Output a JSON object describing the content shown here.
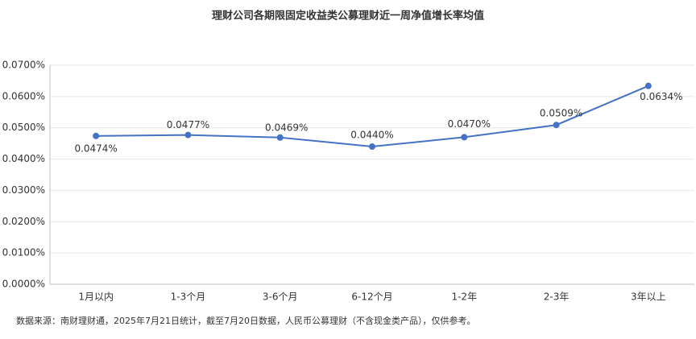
{
  "chart_data": {
    "type": "line",
    "title": "理财公司各期限固定收益类公募理财近一周净值增长率均值",
    "categories": [
      "1月以内",
      "1-3个月",
      "3-6个月",
      "6-12个月",
      "1-2年",
      "2-3年",
      "3年以上"
    ],
    "series": [
      {
        "color": "#4472c4",
        "values": [
          0.0474,
          0.0477,
          0.0469,
          0.044,
          0.047,
          0.0509,
          0.0634
        ],
        "value_labels": [
          "0.0474%",
          "0.0477%",
          "0.0469%",
          "0.0440%",
          "0.0470%",
          "0.0509%",
          "0.0634%"
        ]
      }
    ],
    "ylim": [
      0,
      0.07
    ],
    "yticks": [
      {
        "value": 0,
        "label": "0.0000%"
      },
      {
        "value": 0.01,
        "label": "0.0100%"
      },
      {
        "value": 0.02,
        "label": "0.0200%"
      },
      {
        "value": 0.03,
        "label": "0.0300%"
      },
      {
        "value": 0.04,
        "label": "0.0400%"
      },
      {
        "value": 0.05,
        "label": "0.0500%"
      },
      {
        "value": 0.06,
        "label": "0.0600%"
      },
      {
        "value": 0.07,
        "label": "0.0700%"
      }
    ],
    "grid": true,
    "source": "数据来源：南财理财通，2025年7月21日统计，截至7月20日数据，人民币公募理财（不含现金类产品），仅供参考。"
  }
}
